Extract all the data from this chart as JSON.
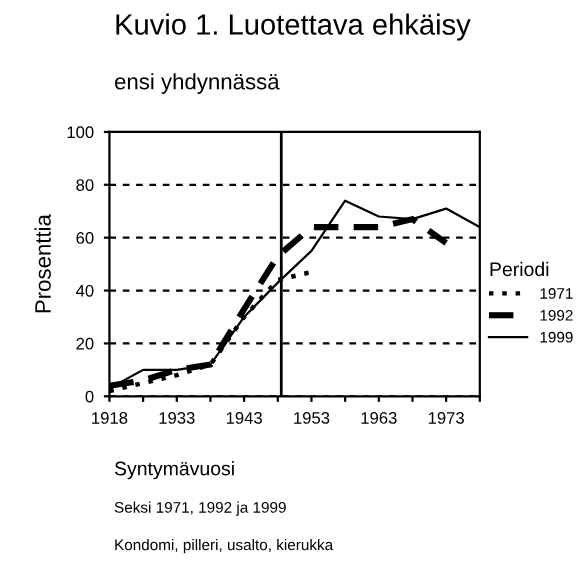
{
  "chart_data": {
    "type": "line",
    "title": "Kuvio 1. Luotettava ehkäisy",
    "subtitle": "ensi yhdynnässä",
    "xlabel": "Syntymävuosi",
    "ylabel": "Prosenttia",
    "legend_title": "Periodi",
    "annotations": [
      "Seksi 1971, 1992 ja 1999",
      "Kondomi, pilleri, usalto, kierukka"
    ],
    "categories": [
      "1918",
      null,
      "1933",
      null,
      "1943",
      null,
      "1953",
      null,
      "1963",
      null,
      "1973",
      null
    ],
    "series": [
      {
        "name": "1971",
        "color": "#000000",
        "line_style": "dotted",
        "values": [
          2,
          5,
          8,
          12,
          30,
          44,
          47,
          null,
          null,
          null,
          null,
          null
        ]
      },
      {
        "name": "1992",
        "color": "#000000",
        "line_style": "dashed",
        "values": [
          4,
          6,
          10,
          12,
          33,
          53,
          64,
          64,
          64,
          67,
          58,
          null
        ]
      },
      {
        "name": "1999",
        "color": "#000000",
        "line_style": "solid",
        "values": [
          3,
          10,
          10,
          12,
          30,
          43,
          55,
          74,
          68,
          67,
          71,
          64
        ]
      }
    ],
    "ylim": [
      0,
      100
    ],
    "yticks": [
      0,
      20,
      40,
      60,
      80,
      100
    ],
    "grid": "y",
    "legend": "right"
  }
}
